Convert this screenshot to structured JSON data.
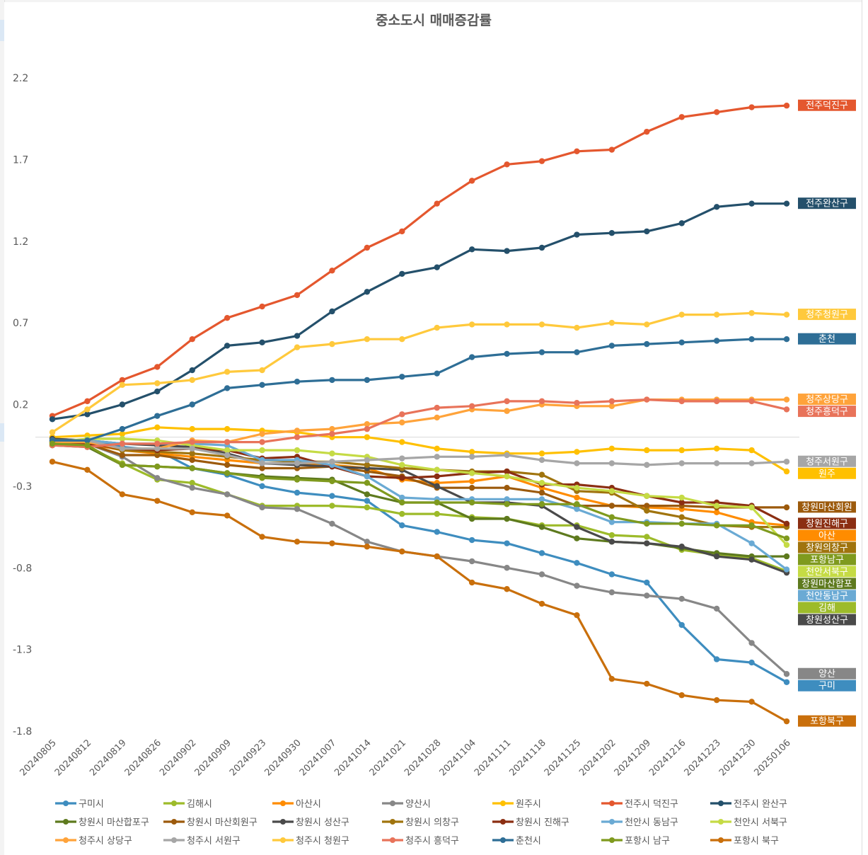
{
  "chart_data": {
    "type": "line",
    "title": "중소도시 매매증감률",
    "xlabel": "",
    "ylabel": "",
    "ylim": [
      -1.8,
      2.2
    ],
    "yticks": [
      "2.2",
      "1.7",
      "1.2",
      "0.7",
      "0.2",
      "-0.3",
      "-0.8",
      "-1.3",
      "-1.8"
    ],
    "ytick_values": [
      2.2,
      1.7,
      1.2,
      0.7,
      0.2,
      -0.3,
      -0.8,
      -1.3,
      -1.8
    ],
    "grid": false,
    "zero_line": true,
    "legend_position": "bottom",
    "x": [
      "20240805",
      "20240812",
      "20240819",
      "20240826",
      "20240902",
      "20240909",
      "20240923",
      "20240930",
      "20241007",
      "20241014",
      "20241021",
      "20241028",
      "20241104",
      "20241111",
      "20241118",
      "20241125",
      "20241202",
      "20241209",
      "20241216",
      "20241223",
      "20241230",
      "20250106"
    ],
    "series": [
      {
        "name": "구미시",
        "color": "#3E8DBF",
        "end_label": "구미",
        "values": [
          -0.01,
          -0.02,
          -0.06,
          -0.08,
          -0.19,
          -0.23,
          -0.3,
          -0.34,
          -0.36,
          -0.39,
          -0.54,
          -0.58,
          -0.63,
          -0.65,
          -0.71,
          -0.77,
          -0.84,
          -0.89,
          -1.15,
          -1.36,
          -1.38,
          -1.5
        ]
      },
      {
        "name": "김해시",
        "color": "#9DBB2A",
        "end_label": "김해",
        "values": [
          -0.04,
          -0.06,
          -0.16,
          -0.26,
          -0.28,
          -0.35,
          -0.42,
          -0.42,
          -0.42,
          -0.43,
          -0.47,
          -0.47,
          -0.49,
          -0.5,
          -0.54,
          -0.54,
          -0.6,
          -0.61,
          -0.69,
          -0.72,
          -0.74,
          -0.82
        ]
      },
      {
        "name": "아산시",
        "color": "#FF8C00",
        "end_label": "아산",
        "values": [
          -0.03,
          -0.04,
          -0.08,
          -0.1,
          -0.12,
          -0.14,
          -0.16,
          -0.16,
          -0.17,
          -0.19,
          -0.26,
          -0.28,
          -0.27,
          -0.24,
          -0.31,
          -0.37,
          -0.42,
          -0.43,
          -0.44,
          -0.46,
          -0.52,
          -0.54
        ]
      },
      {
        "name": "양산시",
        "color": "#878787",
        "end_label": "양산",
        "values": [
          -0.02,
          -0.04,
          -0.12,
          -0.25,
          -0.31,
          -0.35,
          -0.43,
          -0.44,
          -0.53,
          -0.64,
          -0.7,
          -0.73,
          -0.76,
          -0.8,
          -0.84,
          -0.91,
          -0.95,
          -0.97,
          -0.99,
          -1.05,
          -1.26,
          -1.45
        ]
      },
      {
        "name": "원주시",
        "color": "#FFC000",
        "end_label": "원주",
        "values": [
          0.0,
          0.01,
          0.02,
          0.06,
          0.05,
          0.05,
          0.04,
          0.03,
          0.0,
          0.0,
          -0.03,
          -0.07,
          -0.09,
          -0.1,
          -0.1,
          -0.09,
          -0.07,
          -0.08,
          -0.08,
          -0.07,
          -0.08,
          -0.21
        ]
      },
      {
        "name": "전주시 덕진구",
        "color": "#E4572E",
        "end_label": "전주덕진구",
        "values": [
          0.13,
          0.22,
          0.35,
          0.43,
          0.6,
          0.73,
          0.8,
          0.87,
          1.02,
          1.16,
          1.26,
          1.43,
          1.57,
          1.67,
          1.69,
          1.75,
          1.76,
          1.87,
          1.96,
          1.99,
          2.02,
          2.03
        ]
      },
      {
        "name": "전주시 완산구",
        "color": "#24506B",
        "end_label": "전주완산구",
        "values": [
          0.11,
          0.14,
          0.2,
          0.28,
          0.41,
          0.56,
          0.58,
          0.62,
          0.77,
          0.89,
          1.0,
          1.04,
          1.15,
          1.14,
          1.16,
          1.24,
          1.25,
          1.26,
          1.31,
          1.41,
          1.43,
          1.43
        ]
      },
      {
        "name": "창원시 마산합포구",
        "color": "#5E7A1E",
        "end_label": "창원마산합포",
        "values": [
          -0.05,
          -0.06,
          -0.17,
          -0.18,
          -0.19,
          -0.22,
          -0.24,
          -0.25,
          -0.26,
          -0.35,
          -0.4,
          -0.4,
          -0.5,
          -0.5,
          -0.55,
          -0.62,
          -0.64,
          -0.65,
          -0.68,
          -0.71,
          -0.73,
          -0.73
        ]
      },
      {
        "name": "창원시 마산회원구",
        "color": "#9C5A0C",
        "end_label": "창원마산회원",
        "values": [
          -0.03,
          -0.04,
          -0.11,
          -0.11,
          -0.14,
          -0.17,
          -0.19,
          -0.19,
          -0.18,
          -0.21,
          -0.24,
          -0.31,
          -0.31,
          -0.31,
          -0.34,
          -0.42,
          -0.42,
          -0.42,
          -0.42,
          -0.43,
          -0.43,
          -0.43
        ]
      },
      {
        "name": "창원시 성산구",
        "color": "#4A4A4A",
        "end_label": "창원성산구",
        "values": [
          -0.01,
          -0.02,
          -0.04,
          -0.05,
          -0.06,
          -0.1,
          -0.16,
          -0.17,
          -0.18,
          -0.19,
          -0.2,
          -0.3,
          -0.4,
          -0.4,
          -0.42,
          -0.55,
          -0.64,
          -0.65,
          -0.67,
          -0.73,
          -0.75,
          -0.83
        ]
      },
      {
        "name": "창원시 의창구",
        "color": "#A0740E",
        "end_label": "창원의창구",
        "values": [
          -0.03,
          -0.03,
          -0.08,
          -0.09,
          -0.1,
          -0.12,
          -0.14,
          -0.15,
          -0.15,
          -0.17,
          -0.19,
          -0.2,
          -0.21,
          -0.21,
          -0.23,
          -0.33,
          -0.34,
          -0.45,
          -0.49,
          -0.54,
          -0.55,
          -0.55
        ]
      },
      {
        "name": "창원시 진해구",
        "color": "#8B2E12",
        "end_label": "창원진해구",
        "values": [
          -0.03,
          -0.04,
          -0.07,
          -0.08,
          -0.07,
          -0.08,
          -0.13,
          -0.12,
          -0.18,
          -0.24,
          -0.25,
          -0.24,
          -0.22,
          -0.21,
          -0.29,
          -0.29,
          -0.31,
          -0.36,
          -0.4,
          -0.4,
          -0.42,
          -0.53
        ]
      },
      {
        "name": "천안시 동남구",
        "color": "#6AAAD4",
        "end_label": "천안동남구",
        "values": [
          -0.02,
          -0.02,
          -0.04,
          -0.04,
          -0.04,
          -0.05,
          -0.14,
          -0.14,
          -0.17,
          -0.24,
          -0.37,
          -0.38,
          -0.38,
          -0.38,
          -0.38,
          -0.44,
          -0.52,
          -0.52,
          -0.53,
          -0.53,
          -0.65,
          -0.81
        ]
      },
      {
        "name": "천안시 서북구",
        "color": "#C5DB45",
        "end_label": "천안서북구",
        "values": [
          -0.03,
          -0.01,
          -0.01,
          -0.02,
          -0.05,
          -0.08,
          -0.08,
          -0.08,
          -0.1,
          -0.12,
          -0.17,
          -0.2,
          -0.22,
          -0.24,
          -0.28,
          -0.31,
          -0.33,
          -0.36,
          -0.37,
          -0.42,
          -0.43,
          -0.66
        ]
      },
      {
        "name": "청주시 상당구",
        "color": "#FFA33A",
        "end_label": "청주상당구",
        "values": [
          -0.03,
          -0.03,
          -0.07,
          -0.07,
          -0.02,
          -0.03,
          0.02,
          0.04,
          0.05,
          0.08,
          0.09,
          0.12,
          0.17,
          0.16,
          0.2,
          0.19,
          0.19,
          0.23,
          0.23,
          0.23,
          0.23,
          0.23
        ]
      },
      {
        "name": "청주시 서원구",
        "color": "#A6A6A6",
        "end_label": "청주서원구",
        "values": [
          -0.02,
          -0.02,
          -0.07,
          -0.07,
          -0.07,
          -0.11,
          -0.16,
          -0.16,
          -0.15,
          -0.14,
          -0.13,
          -0.12,
          -0.12,
          -0.11,
          -0.14,
          -0.16,
          -0.16,
          -0.17,
          -0.16,
          -0.16,
          -0.16,
          -0.15
        ]
      },
      {
        "name": "청주시 청원구",
        "color": "#FFC93C",
        "end_label": "청주청원구",
        "values": [
          0.03,
          0.17,
          0.32,
          0.33,
          0.35,
          0.4,
          0.41,
          0.55,
          0.57,
          0.6,
          0.6,
          0.67,
          0.69,
          0.69,
          0.69,
          0.67,
          0.7,
          0.69,
          0.75,
          0.75,
          0.76,
          0.75
        ]
      },
      {
        "name": "청주시 흥덕구",
        "color": "#E8735A",
        "end_label": "청주흥덕구",
        "values": [
          -0.05,
          -0.06,
          -0.04,
          -0.04,
          -0.03,
          -0.03,
          -0.03,
          0.0,
          0.02,
          0.05,
          0.14,
          0.18,
          0.19,
          0.22,
          0.22,
          0.21,
          0.22,
          0.23,
          0.22,
          0.22,
          0.22,
          0.17
        ]
      },
      {
        "name": "춘천시",
        "color": "#2E6E96",
        "end_label": "춘천",
        "values": [
          -0.02,
          -0.02,
          0.05,
          0.13,
          0.2,
          0.3,
          0.32,
          0.34,
          0.35,
          0.35,
          0.37,
          0.39,
          0.49,
          0.51,
          0.52,
          0.52,
          0.56,
          0.57,
          0.58,
          0.59,
          0.6,
          0.6
        ]
      },
      {
        "name": "포항시 남구",
        "color": "#7F9A1E",
        "end_label": "포항남구",
        "values": [
          -0.04,
          -0.05,
          -0.17,
          -0.18,
          -0.19,
          -0.22,
          -0.25,
          -0.26,
          -0.27,
          -0.28,
          -0.4,
          -0.4,
          -0.4,
          -0.41,
          -0.41,
          -0.41,
          -0.49,
          -0.53,
          -0.53,
          -0.54,
          -0.54,
          -0.62
        ]
      },
      {
        "name": "포항시 북구",
        "color": "#C96F0B",
        "end_label": "포항북구",
        "values": [
          -0.15,
          -0.2,
          -0.35,
          -0.39,
          -0.46,
          -0.48,
          -0.61,
          -0.64,
          -0.65,
          -0.67,
          -0.7,
          -0.73,
          -0.89,
          -0.93,
          -1.02,
          -1.09,
          -1.48,
          -1.51,
          -1.58,
          -1.61,
          -1.62,
          -1.74
        ]
      }
    ]
  }
}
